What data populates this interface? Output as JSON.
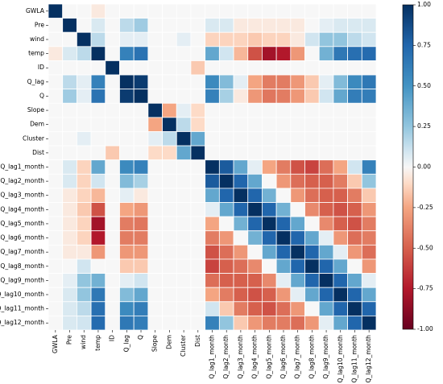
{
  "chart_data": {
    "type": "heatmap",
    "title": "",
    "xlabel": "",
    "ylabel": "",
    "labels": [
      "GWLA",
      "Pre",
      "wind",
      "temp",
      "ID",
      "Q_lag",
      "Q",
      "Slope",
      "Dem",
      "Cluster",
      "Dist",
      "Q_lag1_month",
      "Q_lag2_month",
      "Q_lag3_month",
      "Q_lag4_month",
      "Q_lag5_month",
      "Q_lag6_month",
      "Q_lag7_month",
      "Q_lag8_month",
      "Q_lag9_month",
      "Q_lag10_month",
      "Q_lag11_month",
      "Q_lag12_month"
    ],
    "colormap": "RdBu",
    "vmin": -1.0,
    "vmax": 1.0,
    "colorbar_ticks": [
      "1.00",
      "0.75",
      "0.50",
      "0.25",
      "0.00",
      "-0.25",
      "-0.50",
      "-0.75",
      "-1.00"
    ],
    "matrix": [
      [
        1.0,
        0.0,
        0.0,
        -0.05,
        0.0,
        0.0,
        0.0,
        0.0,
        0.0,
        0.0,
        0.0,
        0.0,
        0.0,
        0.0,
        0.0,
        0.0,
        0.0,
        0.0,
        0.0,
        0.0,
        0.0,
        0.0,
        0.0
      ],
      [
        0.0,
        1.0,
        0.0,
        0.08,
        0.0,
        0.15,
        0.22,
        0.0,
        0.0,
        0.0,
        0.0,
        0.08,
        0.08,
        -0.05,
        -0.05,
        -0.05,
        -0.05,
        -0.05,
        0.0,
        0.05,
        0.08,
        0.08,
        0.08
      ],
      [
        0.0,
        0.0,
        1.0,
        0.15,
        0.0,
        0.05,
        0.05,
        0.0,
        0.0,
        0.05,
        0.0,
        -0.12,
        -0.12,
        -0.12,
        -0.15,
        -0.12,
        -0.12,
        -0.05,
        0.1,
        0.25,
        0.25,
        0.15,
        0.1
      ],
      [
        -0.05,
        0.08,
        0.15,
        1.0,
        0.0,
        0.6,
        0.68,
        0.0,
        0.0,
        0.0,
        0.0,
        0.4,
        0.1,
        -0.2,
        -0.55,
        -0.8,
        -0.75,
        -0.3,
        0.0,
        0.35,
        0.65,
        0.7,
        0.72
      ],
      [
        0.0,
        0.0,
        0.0,
        0.0,
        1.0,
        0.0,
        0.0,
        0.0,
        0.0,
        0.0,
        -0.15,
        0.0,
        0.0,
        0.0,
        0.0,
        0.0,
        0.0,
        0.0,
        0.0,
        0.0,
        0.0,
        0.0,
        0.0
      ],
      [
        0.0,
        0.15,
        0.05,
        0.6,
        0.0,
        1.0,
        0.95,
        0.0,
        0.0,
        0.0,
        0.0,
        0.55,
        0.3,
        0.05,
        -0.25,
        -0.4,
        -0.4,
        -0.3,
        -0.15,
        0.05,
        0.3,
        0.55,
        0.65
      ],
      [
        0.0,
        0.22,
        0.05,
        0.68,
        0.0,
        0.95,
        1.0,
        0.0,
        0.0,
        0.0,
        0.0,
        0.6,
        0.2,
        -0.05,
        -0.3,
        -0.42,
        -0.4,
        -0.3,
        -0.15,
        0.1,
        0.4,
        0.62,
        0.62
      ],
      [
        0.0,
        0.0,
        0.0,
        0.0,
        0.0,
        0.0,
        0.0,
        1.0,
        -0.25,
        0.05,
        -0.1,
        0.0,
        0.0,
        0.0,
        0.0,
        0.0,
        0.0,
        0.0,
        0.0,
        0.0,
        0.0,
        0.0,
        0.0
      ],
      [
        0.0,
        0.0,
        0.0,
        0.0,
        0.0,
        0.0,
        0.0,
        -0.25,
        1.0,
        0.15,
        -0.1,
        0.0,
        0.0,
        0.0,
        0.0,
        0.0,
        0.0,
        0.0,
        0.0,
        0.0,
        0.0,
        0.0,
        0.0
      ],
      [
        0.0,
        0.0,
        0.05,
        0.0,
        0.0,
        0.0,
        0.0,
        0.05,
        0.15,
        1.0,
        0.4,
        0.0,
        0.0,
        0.0,
        0.0,
        0.0,
        0.0,
        0.0,
        0.0,
        0.0,
        0.0,
        0.0,
        0.0
      ],
      [
        0.0,
        0.0,
        0.0,
        0.0,
        -0.15,
        0.0,
        0.0,
        -0.1,
        -0.1,
        0.4,
        1.0,
        0.0,
        0.0,
        0.0,
        0.0,
        0.0,
        0.0,
        0.0,
        0.0,
        0.0,
        0.0,
        0.0,
        0.0
      ],
      [
        0.0,
        0.08,
        -0.12,
        0.4,
        0.0,
        0.55,
        0.6,
        0.0,
        0.0,
        0.0,
        0.0,
        1.0,
        0.8,
        0.4,
        0.05,
        -0.25,
        -0.4,
        -0.55,
        -0.6,
        -0.45,
        -0.25,
        0.1,
        0.6
      ],
      [
        0.0,
        0.08,
        -0.12,
        0.1,
        0.0,
        0.3,
        0.2,
        0.0,
        0.0,
        0.0,
        0.0,
        0.8,
        1.0,
        0.75,
        0.4,
        0.0,
        -0.3,
        -0.45,
        -0.5,
        -0.5,
        -0.4,
        -0.15,
        0.25
      ],
      [
        0.0,
        -0.05,
        -0.12,
        -0.2,
        0.0,
        0.05,
        -0.05,
        0.0,
        0.0,
        0.0,
        0.0,
        0.4,
        0.75,
        1.0,
        0.75,
        0.35,
        0.0,
        -0.3,
        -0.45,
        -0.5,
        -0.5,
        -0.4,
        -0.15
      ],
      [
        0.0,
        -0.05,
        -0.15,
        -0.55,
        0.0,
        -0.25,
        -0.3,
        0.0,
        0.0,
        0.0,
        0.0,
        0.05,
        0.4,
        0.75,
        1.0,
        0.75,
        0.35,
        0.0,
        -0.35,
        -0.5,
        -0.55,
        -0.5,
        -0.3
      ],
      [
        0.0,
        -0.05,
        -0.12,
        -0.8,
        0.0,
        -0.4,
        -0.42,
        0.0,
        0.0,
        0.0,
        0.0,
        -0.25,
        0.0,
        0.35,
        0.75,
        1.0,
        0.75,
        0.4,
        0.0,
        -0.35,
        -0.5,
        -0.55,
        -0.4
      ],
      [
        0.0,
        -0.05,
        -0.12,
        -0.75,
        0.0,
        -0.4,
        -0.4,
        0.0,
        0.0,
        0.0,
        0.0,
        -0.4,
        -0.3,
        0.0,
        0.35,
        0.75,
        1.0,
        0.75,
        0.4,
        0.05,
        -0.3,
        -0.45,
        -0.4
      ],
      [
        0.0,
        -0.05,
        -0.05,
        -0.3,
        0.0,
        -0.3,
        -0.3,
        0.0,
        0.0,
        0.0,
        0.0,
        -0.55,
        -0.45,
        -0.3,
        0.0,
        0.4,
        0.75,
        1.0,
        0.75,
        0.4,
        0.05,
        -0.3,
        -0.45
      ],
      [
        0.0,
        0.0,
        0.1,
        0.0,
        0.0,
        -0.15,
        -0.15,
        0.0,
        0.0,
        0.0,
        0.0,
        -0.6,
        -0.5,
        -0.45,
        -0.35,
        0.0,
        0.4,
        0.75,
        1.0,
        0.75,
        0.4,
        0.0,
        -0.3
      ],
      [
        0.0,
        0.05,
        0.25,
        0.35,
        0.0,
        0.05,
        0.1,
        0.0,
        0.0,
        0.0,
        0.0,
        -0.45,
        -0.5,
        -0.5,
        -0.5,
        -0.35,
        0.05,
        0.4,
        0.75,
        1.0,
        0.75,
        0.4,
        0.05
      ],
      [
        0.0,
        0.08,
        0.25,
        0.65,
        0.0,
        0.3,
        0.4,
        0.0,
        0.0,
        0.0,
        0.0,
        -0.25,
        -0.4,
        -0.5,
        -0.55,
        -0.5,
        -0.3,
        0.05,
        0.4,
        0.75,
        1.0,
        0.75,
        0.4
      ],
      [
        0.0,
        0.08,
        0.15,
        0.7,
        0.0,
        0.55,
        0.62,
        0.0,
        0.0,
        0.0,
        0.0,
        0.1,
        -0.15,
        -0.4,
        -0.5,
        -0.55,
        -0.45,
        -0.3,
        0.0,
        0.4,
        0.75,
        1.0,
        0.75
      ],
      [
        0.0,
        0.08,
        0.1,
        0.72,
        0.0,
        0.65,
        0.62,
        0.0,
        0.0,
        0.0,
        0.0,
        0.6,
        0.25,
        -0.15,
        -0.3,
        -0.4,
        -0.4,
        -0.45,
        -0.3,
        0.05,
        0.4,
        0.75,
        1.0
      ]
    ]
  }
}
